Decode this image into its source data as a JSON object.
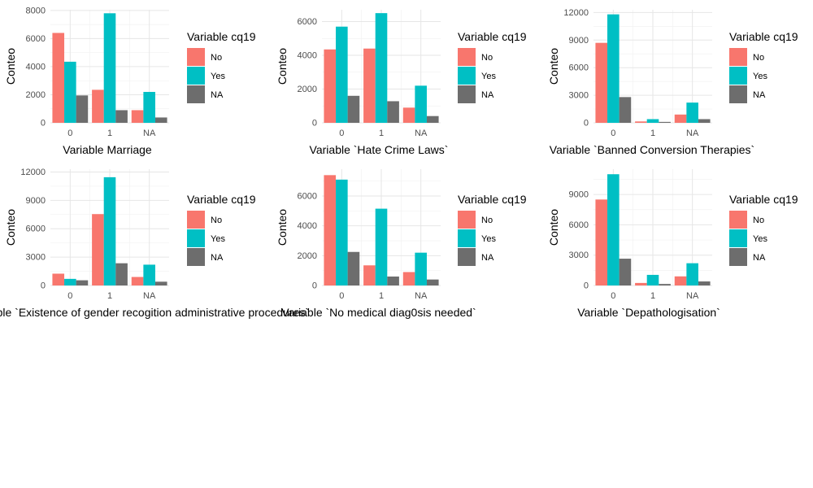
{
  "legend": {
    "title": "Variable cq19",
    "items": [
      {
        "label": "No",
        "color": "#F8766D"
      },
      {
        "label": "Yes",
        "color": "#00BFC4"
      },
      {
        "label": "NA",
        "color": "#6D6D6D"
      }
    ]
  },
  "chart_data": [
    {
      "type": "bar",
      "categories": [
        "0",
        "1",
        "NA"
      ],
      "series": [
        {
          "name": "No",
          "values": [
            6400,
            2350,
            900
          ]
        },
        {
          "name": "Yes",
          "values": [
            4350,
            7800,
            2200
          ]
        },
        {
          "name": "NA",
          "values": [
            1950,
            900,
            380
          ]
        }
      ],
      "xlabel": "Variable Marriage",
      "ylabel": "Conteo",
      "ylim": [
        0,
        8050
      ],
      "yticks": [
        0,
        2000,
        4000,
        6000,
        8000
      ],
      "ytick_labels": [
        "0",
        "2000",
        "4000",
        "6000",
        "8000"
      ],
      "grid": true,
      "legend_position": "right"
    },
    {
      "type": "bar",
      "categories": [
        "0",
        "1",
        "NA"
      ],
      "series": [
        {
          "name": "No",
          "values": [
            4350,
            4400,
            900
          ]
        },
        {
          "name": "Yes",
          "values": [
            5700,
            6500,
            2200
          ]
        },
        {
          "name": "NA",
          "values": [
            1600,
            1280,
            400
          ]
        }
      ],
      "xlabel": "Variable `Hate Crime Laws`",
      "ylabel": "Conteo",
      "ylim": [
        0,
        6700
      ],
      "yticks": [
        0,
        2000,
        4000,
        6000
      ],
      "ytick_labels": [
        "0",
        "2000",
        "4000",
        "6000"
      ],
      "grid": true,
      "legend_position": "right"
    },
    {
      "type": "bar",
      "categories": [
        "0",
        "1",
        "NA"
      ],
      "series": [
        {
          "name": "No",
          "values": [
            8700,
            150,
            900
          ]
        },
        {
          "name": "Yes",
          "values": [
            11800,
            400,
            2200
          ]
        },
        {
          "name": "NA",
          "values": [
            2800,
            100,
            400
          ]
        }
      ],
      "xlabel": "Variable `Banned Conversion Therapies`",
      "ylabel": "Conteo",
      "ylim": [
        0,
        12300
      ],
      "yticks": [
        0,
        3000,
        6000,
        9000,
        12000
      ],
      "ytick_labels": [
        "0",
        "3000",
        "6000",
        "9000",
        "12000"
      ],
      "grid": true,
      "legend_position": "right"
    },
    {
      "type": "bar",
      "categories": [
        "0",
        "1",
        "NA"
      ],
      "series": [
        {
          "name": "No",
          "values": [
            1250,
            7550,
            900
          ]
        },
        {
          "name": "Yes",
          "values": [
            700,
            11450,
            2200
          ]
        },
        {
          "name": "NA",
          "values": [
            550,
            2350,
            400
          ]
        }
      ],
      "xlabel": "Variable `Existence of gender recogition administrative procedures`",
      "ylabel": "Conteo",
      "ylim": [
        0,
        12300
      ],
      "yticks": [
        0,
        3000,
        6000,
        9000,
        12000
      ],
      "ytick_labels": [
        "0",
        "3000",
        "6000",
        "9000",
        "12000"
      ],
      "grid": true,
      "legend_position": "right"
    },
    {
      "type": "bar",
      "categories": [
        "0",
        "1",
        "NA"
      ],
      "series": [
        {
          "name": "No",
          "values": [
            7400,
            1350,
            900
          ]
        },
        {
          "name": "Yes",
          "values": [
            7100,
            5150,
            2200
          ]
        },
        {
          "name": "NA",
          "values": [
            2250,
            600,
            400
          ]
        }
      ],
      "xlabel": "Variable `No medical diag0sis needed`",
      "ylabel": "Conteo",
      "ylim": [
        0,
        7800
      ],
      "yticks": [
        0,
        2000,
        4000,
        6000
      ],
      "ytick_labels": [
        "0",
        "2000",
        "4000",
        "6000"
      ],
      "grid": true,
      "legend_position": "right"
    },
    {
      "type": "bar",
      "categories": [
        "0",
        "1",
        "NA"
      ],
      "series": [
        {
          "name": "No",
          "values": [
            8500,
            250,
            900
          ]
        },
        {
          "name": "Yes",
          "values": [
            11000,
            1050,
            2200
          ]
        },
        {
          "name": "NA",
          "values": [
            2650,
            150,
            400
          ]
        }
      ],
      "xlabel": "Variable `Depathologisation`",
      "ylabel": "Conteo",
      "ylim": [
        0,
        11500
      ],
      "yticks": [
        0,
        3000,
        6000,
        9000
      ],
      "ytick_labels": [
        "0",
        "3000",
        "6000",
        "9000"
      ],
      "grid": true,
      "legend_position": "right"
    }
  ]
}
